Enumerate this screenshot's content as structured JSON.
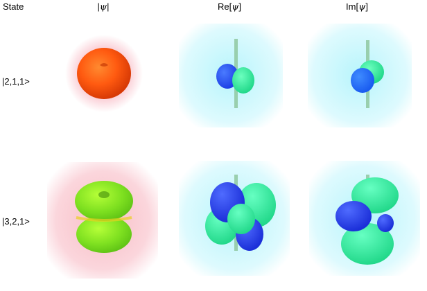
{
  "header": {
    "state": "State",
    "abs_left": "|",
    "abs_psi": "ψ",
    "abs_right": "|",
    "re_prefix": "Re[",
    "re_psi": "ψ",
    "re_suffix": "]",
    "im_prefix": "Im[",
    "im_psi": "ψ",
    "im_suffix": "]"
  },
  "rows": [
    {
      "label": "|2,1,1>"
    },
    {
      "label": "|3,2,1>"
    }
  ],
  "colors": {
    "orange": "#ff5a10",
    "pink_glow": "#f6a4b2",
    "cyan_glow": "#9ff1fb",
    "blue_lobe": "#2050ff",
    "green_lobe": "#3df0a0",
    "lime_lobe": "#7ee020",
    "axis": "#8fc8a0"
  }
}
